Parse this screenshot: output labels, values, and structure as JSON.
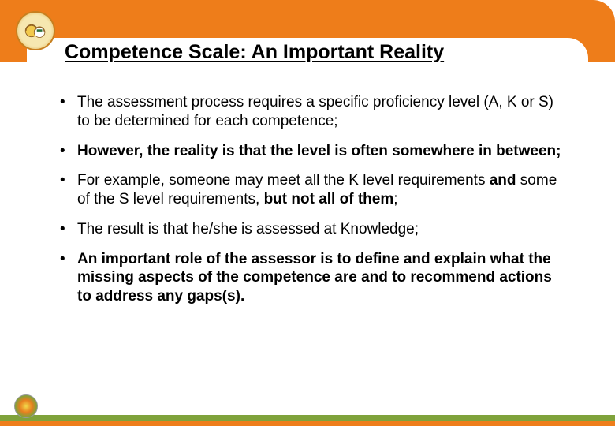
{
  "colors": {
    "header_bg": "#ee7d1a",
    "footer_green": "#7fa23b",
    "footer_orange": "#ee7d1a",
    "text": "#000000",
    "content_bg": "#ffffff"
  },
  "title": "Competence Scale: An Important Reality",
  "title_fontsize": 25,
  "body_fontsize": 19,
  "bullets": [
    {
      "segments": [
        {
          "text": "The assessment process requires a specific proficiency level (A, K or S) to be determined for each competence;",
          "bold": false
        }
      ]
    },
    {
      "segments": [
        {
          "text": "However, the reality is that the level is often somewhere in between;",
          "bold": true
        }
      ]
    },
    {
      "segments": [
        {
          "text": "For example, someone may meet all the K level requirements ",
          "bold": false
        },
        {
          "text": "and",
          "bold": true
        },
        {
          "text": " some of the S level requirements, ",
          "bold": false
        },
        {
          "text": "but not all of them",
          "bold": true
        },
        {
          "text": ";",
          "bold": false
        }
      ]
    },
    {
      "segments": [
        {
          "text": "The result is that he/she is assessed at Knowledge;",
          "bold": false
        }
      ]
    },
    {
      "segments": [
        {
          "text": "An important role of the assessor is to define and explain what the missing aspects of the competence are and to recommend actions to address any gaps(s).",
          "bold": true
        }
      ]
    }
  ],
  "logo_top": {
    "name": "safety-teamwork-badge"
  },
  "logo_bottom": {
    "name": "flower-badge"
  }
}
